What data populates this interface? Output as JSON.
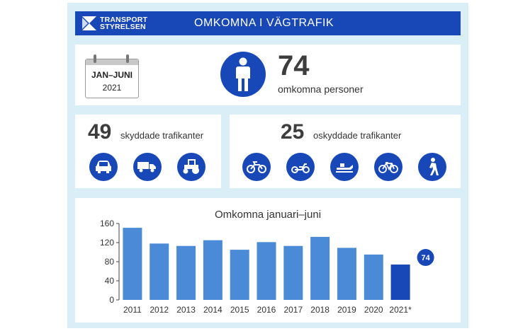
{
  "header": {
    "logo_line1": "TRANSPORT",
    "logo_line2": "STYRELSEN",
    "title": "OMKOMNA I VÄGTRAFIK"
  },
  "summary": {
    "calendar_month": "JAN–JUNI",
    "calendar_year": "2021",
    "total_number": "74",
    "total_label": "omkomna personer"
  },
  "protected": {
    "number": "49",
    "label": "skyddade trafikanter",
    "icons": [
      "car-icon",
      "truck-icon",
      "tractor-icon"
    ]
  },
  "unprotected": {
    "number": "25",
    "label": "oskyddade trafikanter",
    "icons": [
      "motorcycle-icon",
      "moped-icon",
      "snowmobile-icon",
      "bicycle-icon",
      "pedestrian-icon"
    ]
  },
  "colors": {
    "brand_blue": "#1848b8",
    "bar_blue": "#4a8ad6",
    "bar_highlight": "#1848b8",
    "frame": "#d9eef7"
  },
  "chart_data": {
    "type": "bar",
    "title": "Omkomna januari–juni",
    "categories": [
      "2011",
      "2012",
      "2013",
      "2014",
      "2015",
      "2016",
      "2017",
      "2018",
      "2019",
      "2020",
      "2021*"
    ],
    "values": [
      151,
      118,
      113,
      125,
      105,
      121,
      113,
      132,
      109,
      95,
      74
    ],
    "highlight_index": 10,
    "highlight_label": "74",
    "yticks": [
      "0",
      "40",
      "80",
      "120",
      "160"
    ],
    "ylim": [
      0,
      160
    ],
    "grid": false,
    "xlabel": "",
    "ylabel": ""
  }
}
